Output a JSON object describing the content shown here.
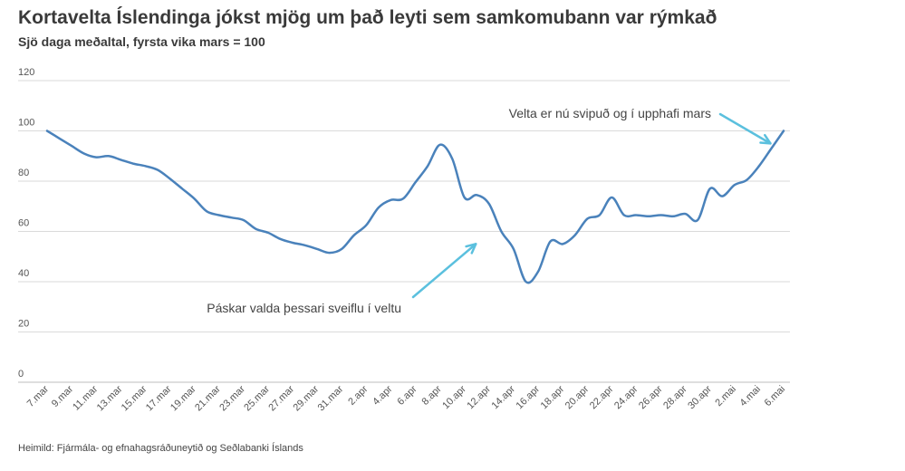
{
  "chart_data": {
    "type": "line",
    "title": "Kortavelta Íslendinga jókst mjög um það leyti sem samkomubann var rýmkað",
    "subtitle": "Sjö daga meðaltal, fyrsta vika mars = 100",
    "source": "Heimild: Fjármála- og efnahagsráðuneytið og Seðlabanki Íslands",
    "xlabel": "",
    "ylabel": "",
    "ylim": [
      0,
      120
    ],
    "yticks": [
      0,
      20,
      40,
      60,
      80,
      100,
      120
    ],
    "grid": true,
    "x_tick_labels": [
      "7.mar",
      "9.mar",
      "11.mar",
      "13.mar",
      "15.mar",
      "17.mar",
      "19.mar",
      "21.mar",
      "23.mar",
      "25.mar",
      "27.mar",
      "29.mar",
      "31.mar",
      "2.apr",
      "4.apr",
      "6.apr",
      "8.apr",
      "10.apr",
      "12.apr",
      "14.apr",
      "16.apr",
      "18.apr",
      "20.apr",
      "22.apr",
      "24.apr",
      "26.apr",
      "28.apr",
      "30.apr",
      "2.mai",
      "4.mai",
      "6.mai"
    ],
    "x": [
      "7.mar",
      "8.mar",
      "9.mar",
      "10.mar",
      "11.mar",
      "12.mar",
      "13.mar",
      "14.mar",
      "15.mar",
      "16.mar",
      "17.mar",
      "18.mar",
      "19.mar",
      "20.mar",
      "21.mar",
      "22.mar",
      "23.mar",
      "24.mar",
      "25.mar",
      "26.mar",
      "27.mar",
      "28.mar",
      "29.mar",
      "30.mar",
      "31.mar",
      "1.apr",
      "2.apr",
      "3.apr",
      "4.apr",
      "5.apr",
      "6.apr",
      "7.apr",
      "8.apr",
      "9.apr",
      "10.apr",
      "11.apr",
      "12.apr",
      "13.apr",
      "14.apr",
      "15.apr",
      "16.apr",
      "17.apr",
      "18.apr",
      "19.apr",
      "20.apr",
      "21.apr",
      "22.apr",
      "23.apr",
      "24.apr",
      "25.apr",
      "26.apr",
      "27.apr",
      "28.apr",
      "29.apr",
      "30.apr",
      "1.mai",
      "2.mai",
      "3.mai",
      "4.mai",
      "5.mai",
      "6.mai"
    ],
    "series": [
      {
        "color": "#4a82bb",
        "values": [
          100,
          97,
          94,
          91,
          89.5,
          90,
          88.5,
          87,
          86,
          84.5,
          81,
          77,
          73,
          68,
          66.5,
          65.5,
          64.5,
          61,
          59.5,
          57,
          55.5,
          54.5,
          53,
          51.5,
          53,
          58.5,
          62.5,
          69.5,
          72.5,
          73,
          79.5,
          86,
          94.5,
          89,
          73.5,
          74.5,
          71,
          60,
          53,
          40,
          44,
          56,
          55,
          58.5,
          65,
          66.5,
          73.5,
          66.5,
          66.5,
          66,
          66.5,
          66,
          67,
          64.5,
          77,
          74,
          78.5,
          80.5,
          86,
          93,
          100
        ]
      }
    ],
    "annotations": [
      {
        "text": "Velta er nú svipuð og í upphafi mars",
        "x": "5.mai",
        "y": 95
      },
      {
        "text": "Páskar valda þessari sveiflu í veltu",
        "x": "11.apr",
        "y": 55
      }
    ],
    "annotation_color": "#5bc0de"
  }
}
